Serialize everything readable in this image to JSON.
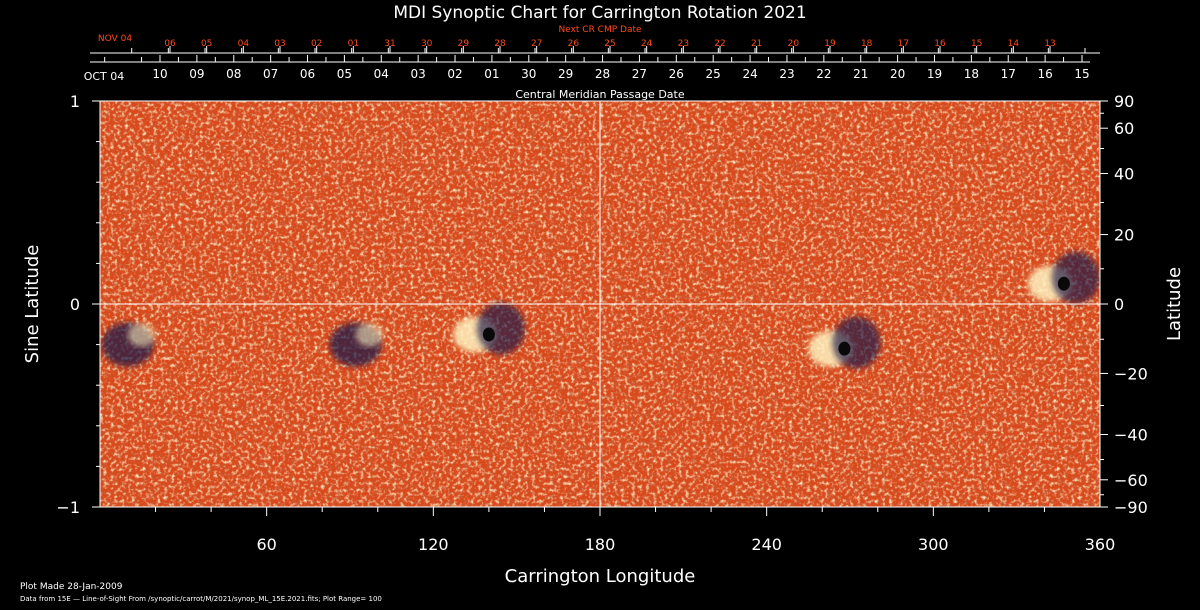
{
  "chart_data": {
    "type": "heatmap",
    "title": "MDI Synoptic Chart for Carrington Rotation 2021",
    "xlabel": "Carrington Longitude",
    "ylabel_left": "Sine Latitude",
    "ylabel_right": "Latitude",
    "xlim": [
      0,
      360
    ],
    "ylim": [
      -1,
      1
    ],
    "x_ticks": [
      60,
      120,
      180,
      240,
      300,
      360
    ],
    "y_ticks_left": [
      "1",
      "0",
      "−1"
    ],
    "y_ticks_right": [
      "90",
      "60",
      "40",
      "20",
      "0",
      "−20",
      "−40",
      "−60",
      "−90"
    ],
    "y_ticks_right_values": [
      90,
      60,
      40,
      20,
      0,
      -20,
      -40,
      -60,
      -90
    ],
    "top_axis_1": {
      "label": "Central Meridian Passage Date",
      "start_label": "OCT 04",
      "dates": [
        "10",
        "09",
        "08",
        "07",
        "06",
        "05",
        "04",
        "03",
        "02",
        "01",
        "30",
        "29",
        "28",
        "27",
        "26",
        "25",
        "24",
        "23",
        "22",
        "21",
        "20",
        "19",
        "18",
        "17",
        "16",
        "15"
      ]
    },
    "top_axis_2": {
      "label": "Next CR CMP Date",
      "start_label": "NOV 04",
      "dates": [
        "06",
        "05",
        "04",
        "03",
        "02",
        "01",
        "31",
        "30",
        "29",
        "28",
        "27",
        "26",
        "25",
        "24",
        "23",
        "22",
        "21",
        "20",
        "19",
        "18",
        "17",
        "16",
        "15",
        "14",
        "13"
      ]
    },
    "colorbar_note": "Plot Range= 100",
    "notable_regions": [
      {
        "lon": 268,
        "sinlat": -0.22,
        "polarity": "mixed"
      },
      {
        "lon": 347,
        "sinlat": 0.1,
        "polarity": "mixed"
      },
      {
        "lon": 92,
        "sinlat": -0.2,
        "polarity": "negative"
      },
      {
        "lon": 140,
        "sinlat": -0.15,
        "polarity": "mixed"
      },
      {
        "lon": 10,
        "sinlat": -0.2,
        "polarity": "negative"
      }
    ]
  },
  "footer": {
    "plot_made": "Plot Made 28-Jan-2009",
    "data_from": "Data from 15E — Line-of-Sight From /synoptic/carrot/M/2021/synop_ML_15E.2021.fits; Plot Range= 100"
  },
  "colors": {
    "background": "#000000",
    "map_base": "#d8491c",
    "positive": "#fff3c0",
    "negative": "#17154a",
    "axis": "#ffffff",
    "next_cr_text": "#ff4a1c"
  }
}
